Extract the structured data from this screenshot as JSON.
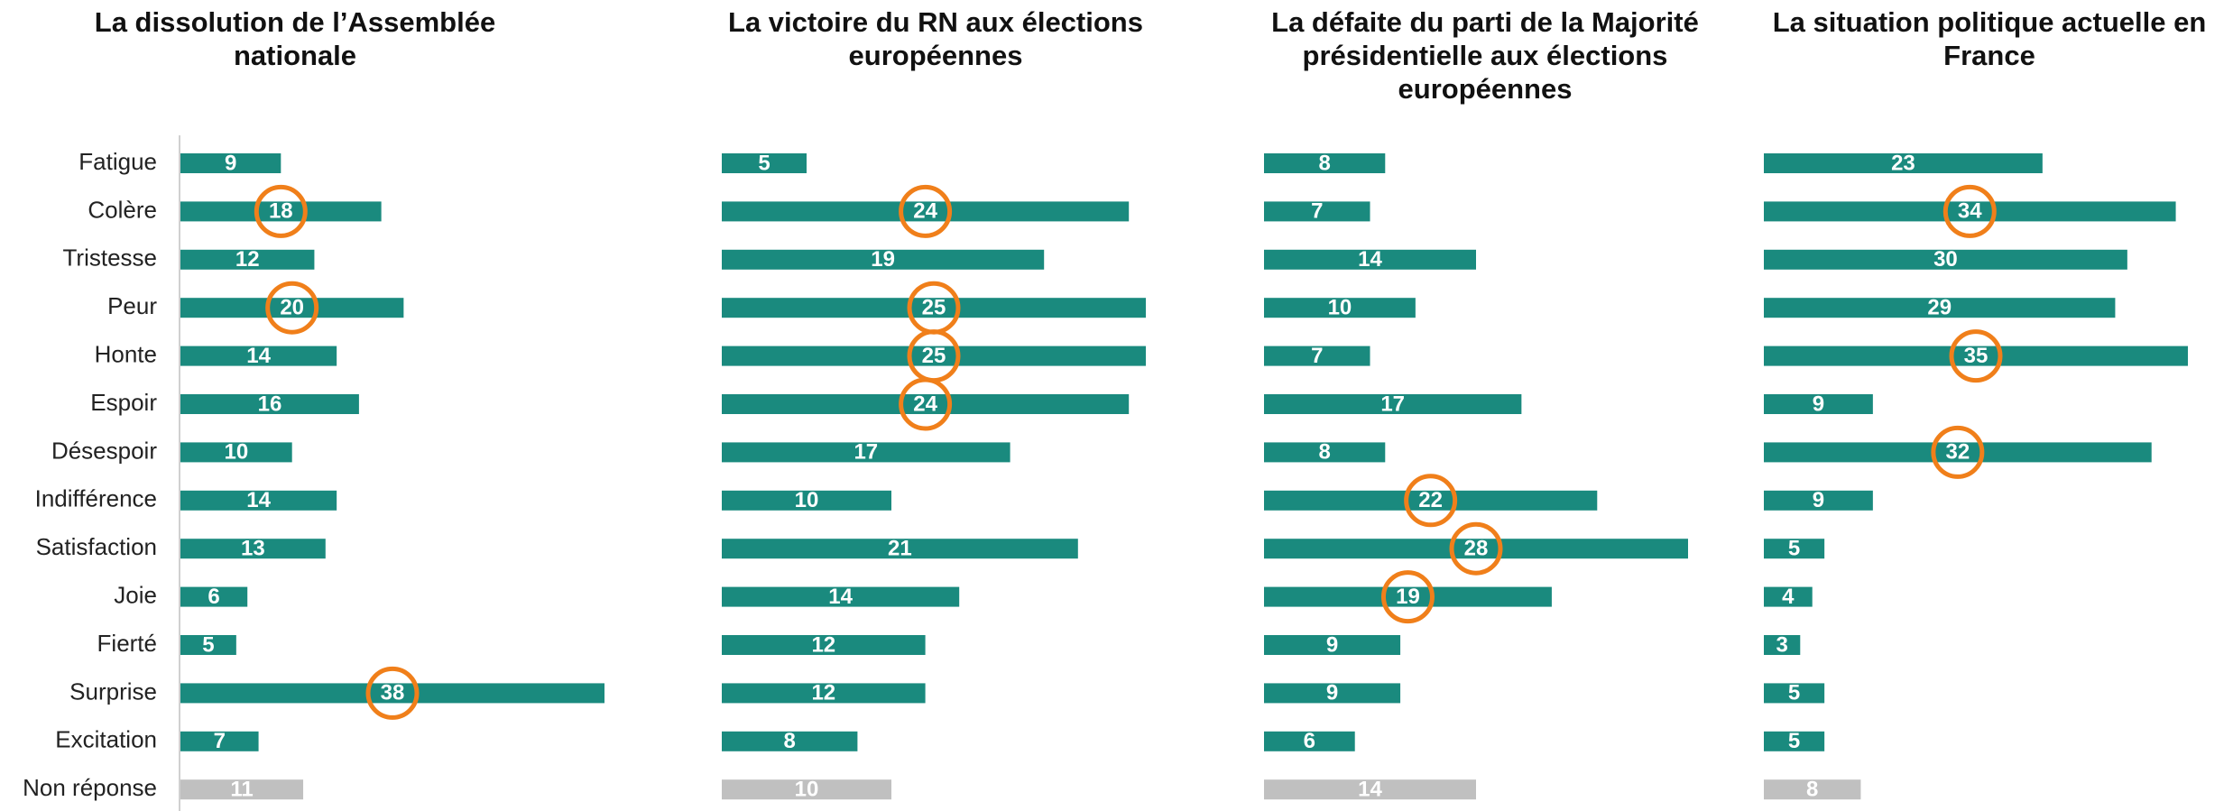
{
  "chart_data": [
    {
      "type": "bar",
      "title": "La dissolution de l’Assemblée nationale",
      "categories": [
        "Fatigue",
        "Colère",
        "Tristesse",
        "Peur",
        "Honte",
        "Espoir",
        "Désespoir",
        "Indifférence",
        "Satisfaction",
        "Joie",
        "Fierté",
        "Surprise",
        "Excitation",
        "Non réponse"
      ],
      "values": [
        9,
        18,
        12,
        20,
        14,
        16,
        10,
        14,
        13,
        6,
        5,
        38,
        7,
        11
      ],
      "highlighted": [
        1,
        3,
        11
      ],
      "muted": [
        13
      ],
      "color": "#1a8a7e",
      "muted_color": "#c0c0c0",
      "highlight_color": "#f07f1a"
    },
    {
      "type": "bar",
      "title": "La victoire du RN aux élections européennes",
      "values": [
        5,
        24,
        19,
        25,
        25,
        24,
        17,
        10,
        21,
        14,
        12,
        12,
        8,
        10
      ],
      "highlighted": [
        1,
        3,
        4,
        5
      ],
      "muted": [
        13
      ],
      "color": "#1a8a7e",
      "muted_color": "#c0c0c0",
      "highlight_color": "#f07f1a"
    },
    {
      "type": "bar",
      "title": "La défaite du parti de la Majorité présidentielle aux élections européennes",
      "values": [
        8,
        7,
        14,
        10,
        7,
        17,
        8,
        22,
        28,
        19,
        9,
        9,
        6,
        14
      ],
      "highlighted": [
        7,
        8,
        9
      ],
      "muted": [
        13
      ],
      "color": "#1a8a7e",
      "muted_color": "#c0c0c0",
      "highlight_color": "#f07f1a"
    },
    {
      "type": "bar",
      "title": "La situation politique actuelle en France",
      "values": [
        23,
        34,
        30,
        29,
        35,
        9,
        32,
        9,
        5,
        4,
        3,
        5,
        5,
        8
      ],
      "highlighted": [
        1,
        4,
        6
      ],
      "muted": [
        13
      ],
      "color": "#1a8a7e",
      "muted_color": "#c0c0c0",
      "highlight_color": "#f07f1a"
    }
  ]
}
